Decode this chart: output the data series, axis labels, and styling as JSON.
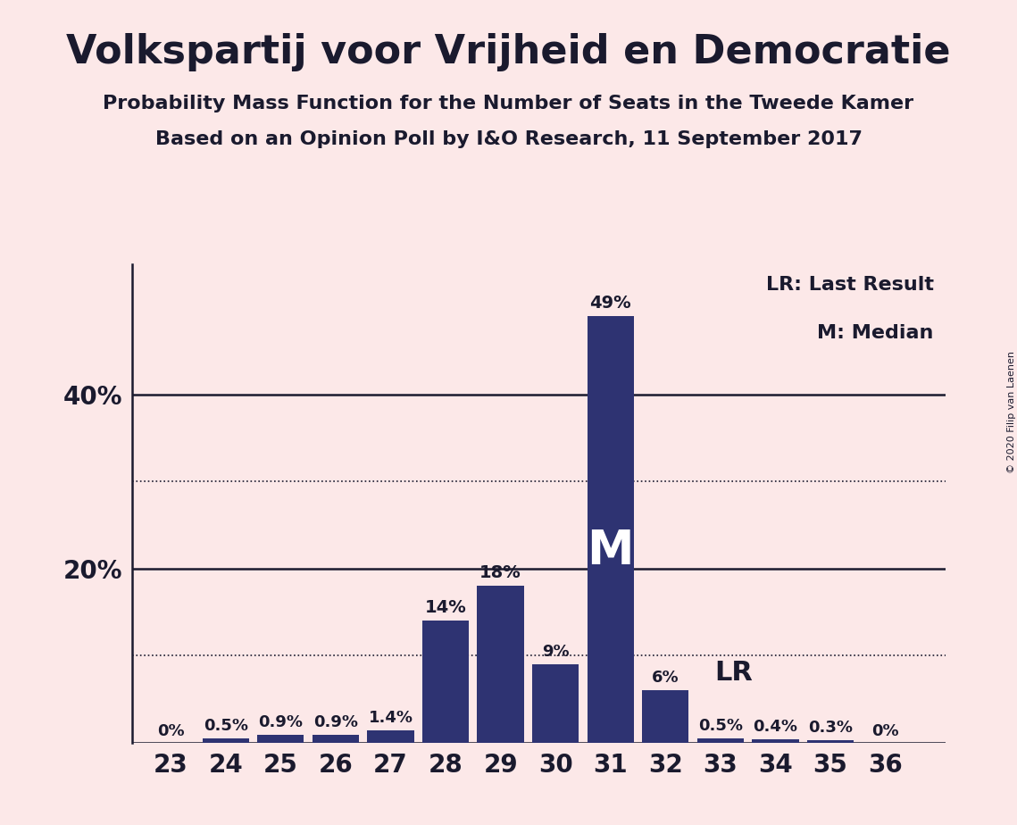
{
  "title": "Volkspartij voor Vrijheid en Democratie",
  "subtitle1": "Probability Mass Function for the Number of Seats in the Tweede Kamer",
  "subtitle2": "Based on an Opinion Poll by I&O Research, 11 September 2017",
  "copyright": "© 2020 Filip van Laenen",
  "seats": [
    23,
    24,
    25,
    26,
    27,
    28,
    29,
    30,
    31,
    32,
    33,
    34,
    35,
    36
  ],
  "probabilities": [
    0.0,
    0.5,
    0.9,
    0.9,
    1.4,
    14.0,
    18.0,
    9.0,
    49.0,
    6.0,
    0.5,
    0.4,
    0.3,
    0.0
  ],
  "bar_color": "#2e3372",
  "background_color": "#fce8e8",
  "text_color": "#1a1a2e",
  "last_result_seat": 32,
  "median_seat": 31,
  "yticks_solid": [
    20,
    40
  ],
  "yticks_dotted": [
    10,
    30
  ],
  "ylim": [
    0,
    55
  ],
  "legend_lr": "LR: Last Result",
  "legend_m": "M: Median",
  "title_fontsize": 32,
  "subtitle_fontsize": 16,
  "tick_fontsize": 20,
  "label_fontsize": 13,
  "legend_fontsize": 16,
  "lr_fontsize": 22,
  "m_fontsize": 38,
  "copyright_fontsize": 8
}
